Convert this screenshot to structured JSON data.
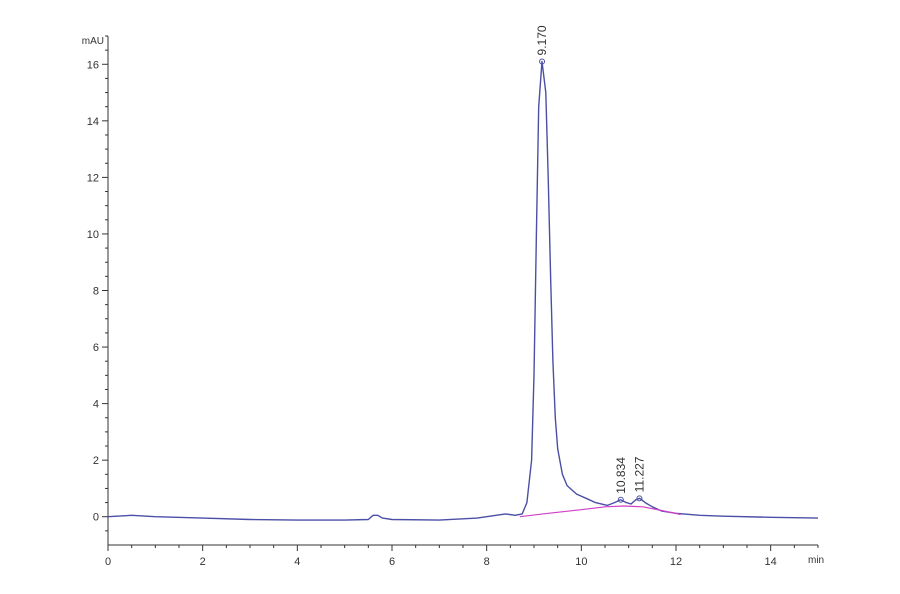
{
  "chart_data": {
    "type": "line",
    "ylabel": "mAU",
    "xlabel": "min",
    "xlim": [
      0,
      15
    ],
    "ylim": [
      -1,
      17
    ],
    "x_ticks": [
      0,
      2,
      4,
      6,
      8,
      10,
      12,
      14
    ],
    "y_ticks": [
      0,
      2,
      4,
      6,
      8,
      10,
      12,
      14,
      16
    ],
    "grid": false,
    "colors": {
      "signal": "#4b4fa6",
      "baseline": "#d040c8",
      "axis": "#333333"
    },
    "series": [
      {
        "role": "signal",
        "points": [
          [
            0,
            0.0
          ],
          [
            0.5,
            0.05
          ],
          [
            1,
            0.0
          ],
          [
            2,
            -0.05
          ],
          [
            3,
            -0.1
          ],
          [
            4,
            -0.12
          ],
          [
            5,
            -0.12
          ],
          [
            5.5,
            -0.1
          ],
          [
            5.6,
            0.05
          ],
          [
            5.7,
            0.05
          ],
          [
            5.8,
            -0.05
          ],
          [
            6,
            -0.1
          ],
          [
            7,
            -0.12
          ],
          [
            7.8,
            -0.05
          ],
          [
            8.2,
            0.05
          ],
          [
            8.4,
            0.1
          ],
          [
            8.6,
            0.05
          ],
          [
            8.75,
            0.1
          ],
          [
            8.85,
            0.5
          ],
          [
            8.95,
            2.0
          ],
          [
            9.0,
            5.0
          ],
          [
            9.05,
            10.0
          ],
          [
            9.1,
            14.5
          ],
          [
            9.17,
            16.1
          ],
          [
            9.25,
            15.0
          ],
          [
            9.3,
            12.0
          ],
          [
            9.35,
            8.5
          ],
          [
            9.4,
            5.5
          ],
          [
            9.45,
            3.5
          ],
          [
            9.5,
            2.4
          ],
          [
            9.6,
            1.5
          ],
          [
            9.7,
            1.1
          ],
          [
            9.9,
            0.8
          ],
          [
            10.1,
            0.65
          ],
          [
            10.3,
            0.5
          ],
          [
            10.55,
            0.4
          ],
          [
            10.7,
            0.5
          ],
          [
            10.83,
            0.6
          ],
          [
            10.95,
            0.5
          ],
          [
            11.05,
            0.45
          ],
          [
            11.15,
            0.6
          ],
          [
            11.23,
            0.65
          ],
          [
            11.35,
            0.5
          ],
          [
            11.5,
            0.35
          ],
          [
            11.7,
            0.2
          ],
          [
            12,
            0.12
          ],
          [
            12.5,
            0.05
          ],
          [
            13,
            0.02
          ],
          [
            14,
            -0.02
          ],
          [
            15,
            -0.05
          ]
        ]
      },
      {
        "role": "baseline",
        "points": [
          [
            8.7,
            0.0
          ],
          [
            9.3,
            0.12
          ],
          [
            10.0,
            0.25
          ],
          [
            10.5,
            0.35
          ],
          [
            10.9,
            0.38
          ],
          [
            11.3,
            0.35
          ],
          [
            11.7,
            0.22
          ],
          [
            12.1,
            0.08
          ]
        ]
      }
    ],
    "peaks": [
      {
        "time": 9.17,
        "height": 16.1,
        "label": "9.170"
      },
      {
        "time": 10.834,
        "height": 0.6,
        "label": "10.834"
      },
      {
        "time": 11.227,
        "height": 0.65,
        "label": "11.227"
      }
    ]
  }
}
